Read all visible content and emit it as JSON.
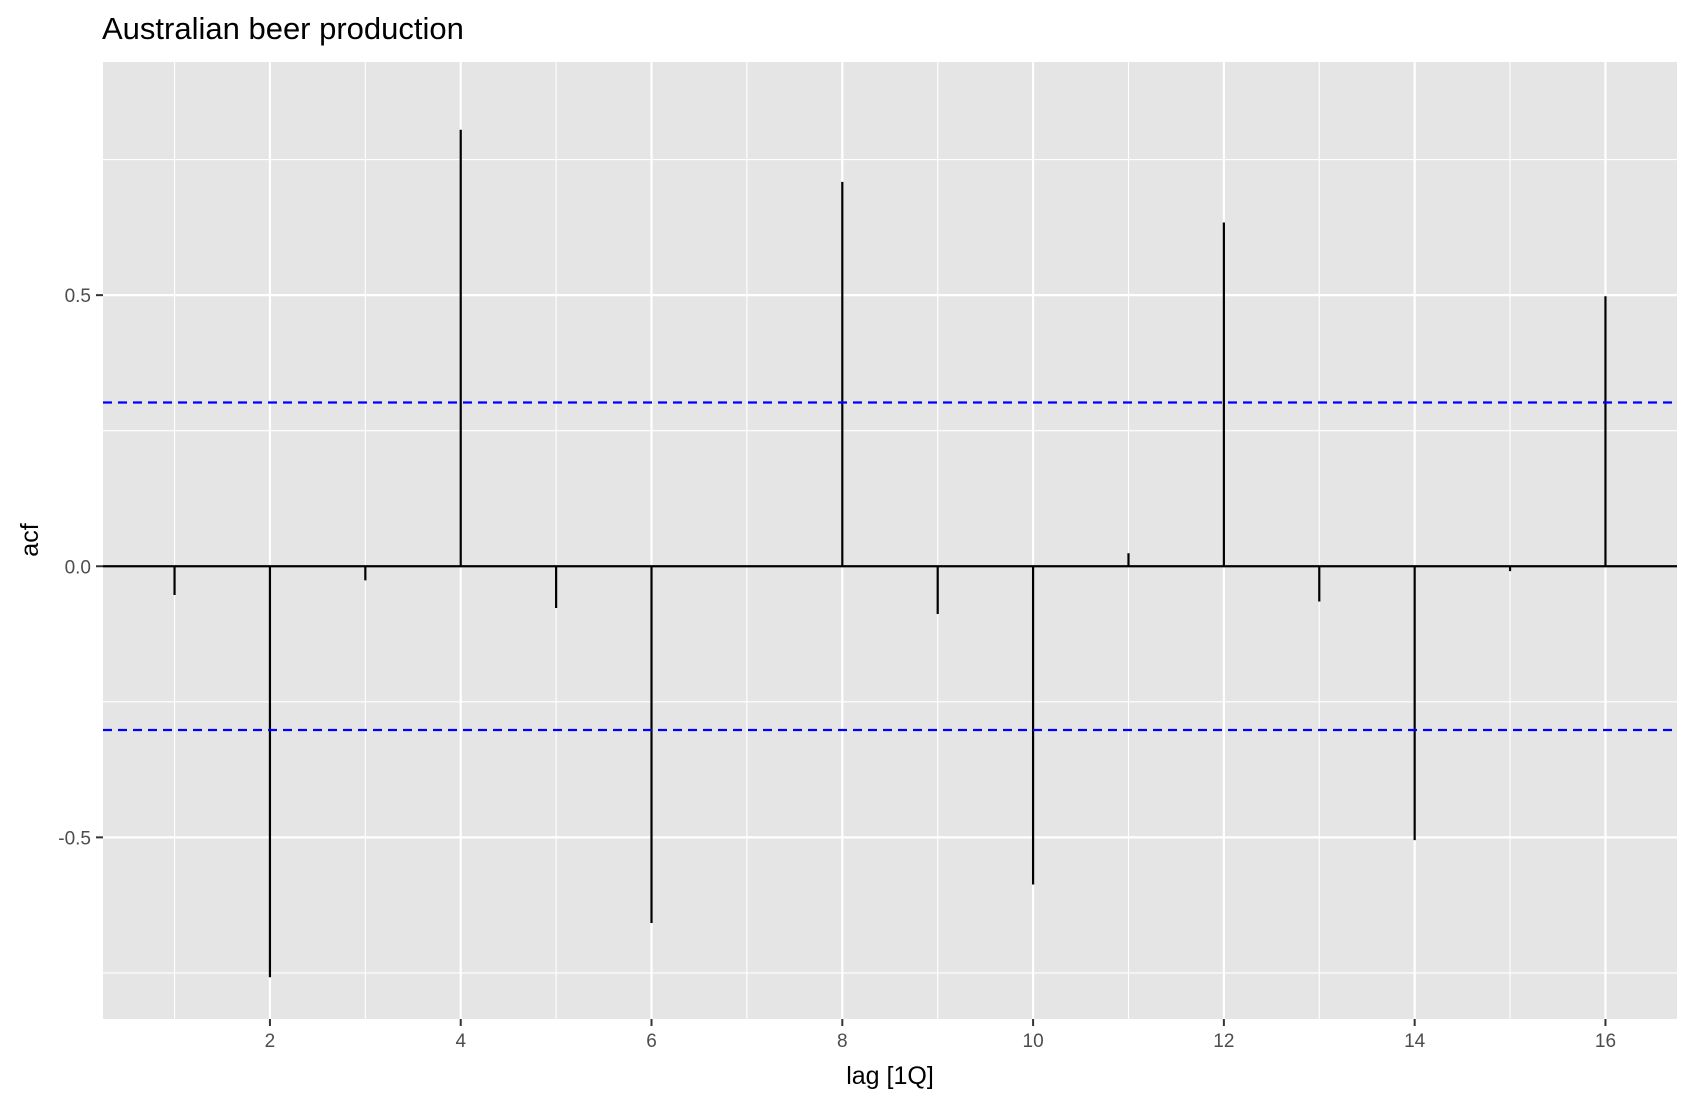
{
  "chart_data": {
    "type": "bar",
    "title": "Australian beer production",
    "xlabel": "lag [1Q]",
    "ylabel": "acf",
    "x": [
      1,
      2,
      3,
      4,
      5,
      6,
      7,
      8,
      9,
      10,
      11,
      12,
      13,
      14,
      15,
      16
    ],
    "values": [
      -0.053,
      -0.758,
      -0.026,
      0.805,
      -0.077,
      -0.658,
      0.0,
      0.709,
      -0.088,
      -0.587,
      0.024,
      0.634,
      -0.065,
      -0.505,
      -0.009,
      0.498
    ],
    "x_ticks": [
      2,
      4,
      6,
      8,
      10,
      12,
      14,
      16
    ],
    "y_ticks": [
      -0.5,
      0.0,
      0.5
    ],
    "y_tick_labels": [
      "-0.5",
      "0.0",
      "0.5"
    ],
    "xlim": [
      0.25,
      16.75
    ],
    "ylim": [
      -0.835,
      0.93
    ],
    "confidence_bounds": [
      0.302,
      -0.302
    ],
    "grid": true,
    "colors": {
      "panel_background": "#e5e5e5",
      "grid": "#ffffff",
      "spike": "#000000",
      "confidence": "#0000ff"
    }
  }
}
